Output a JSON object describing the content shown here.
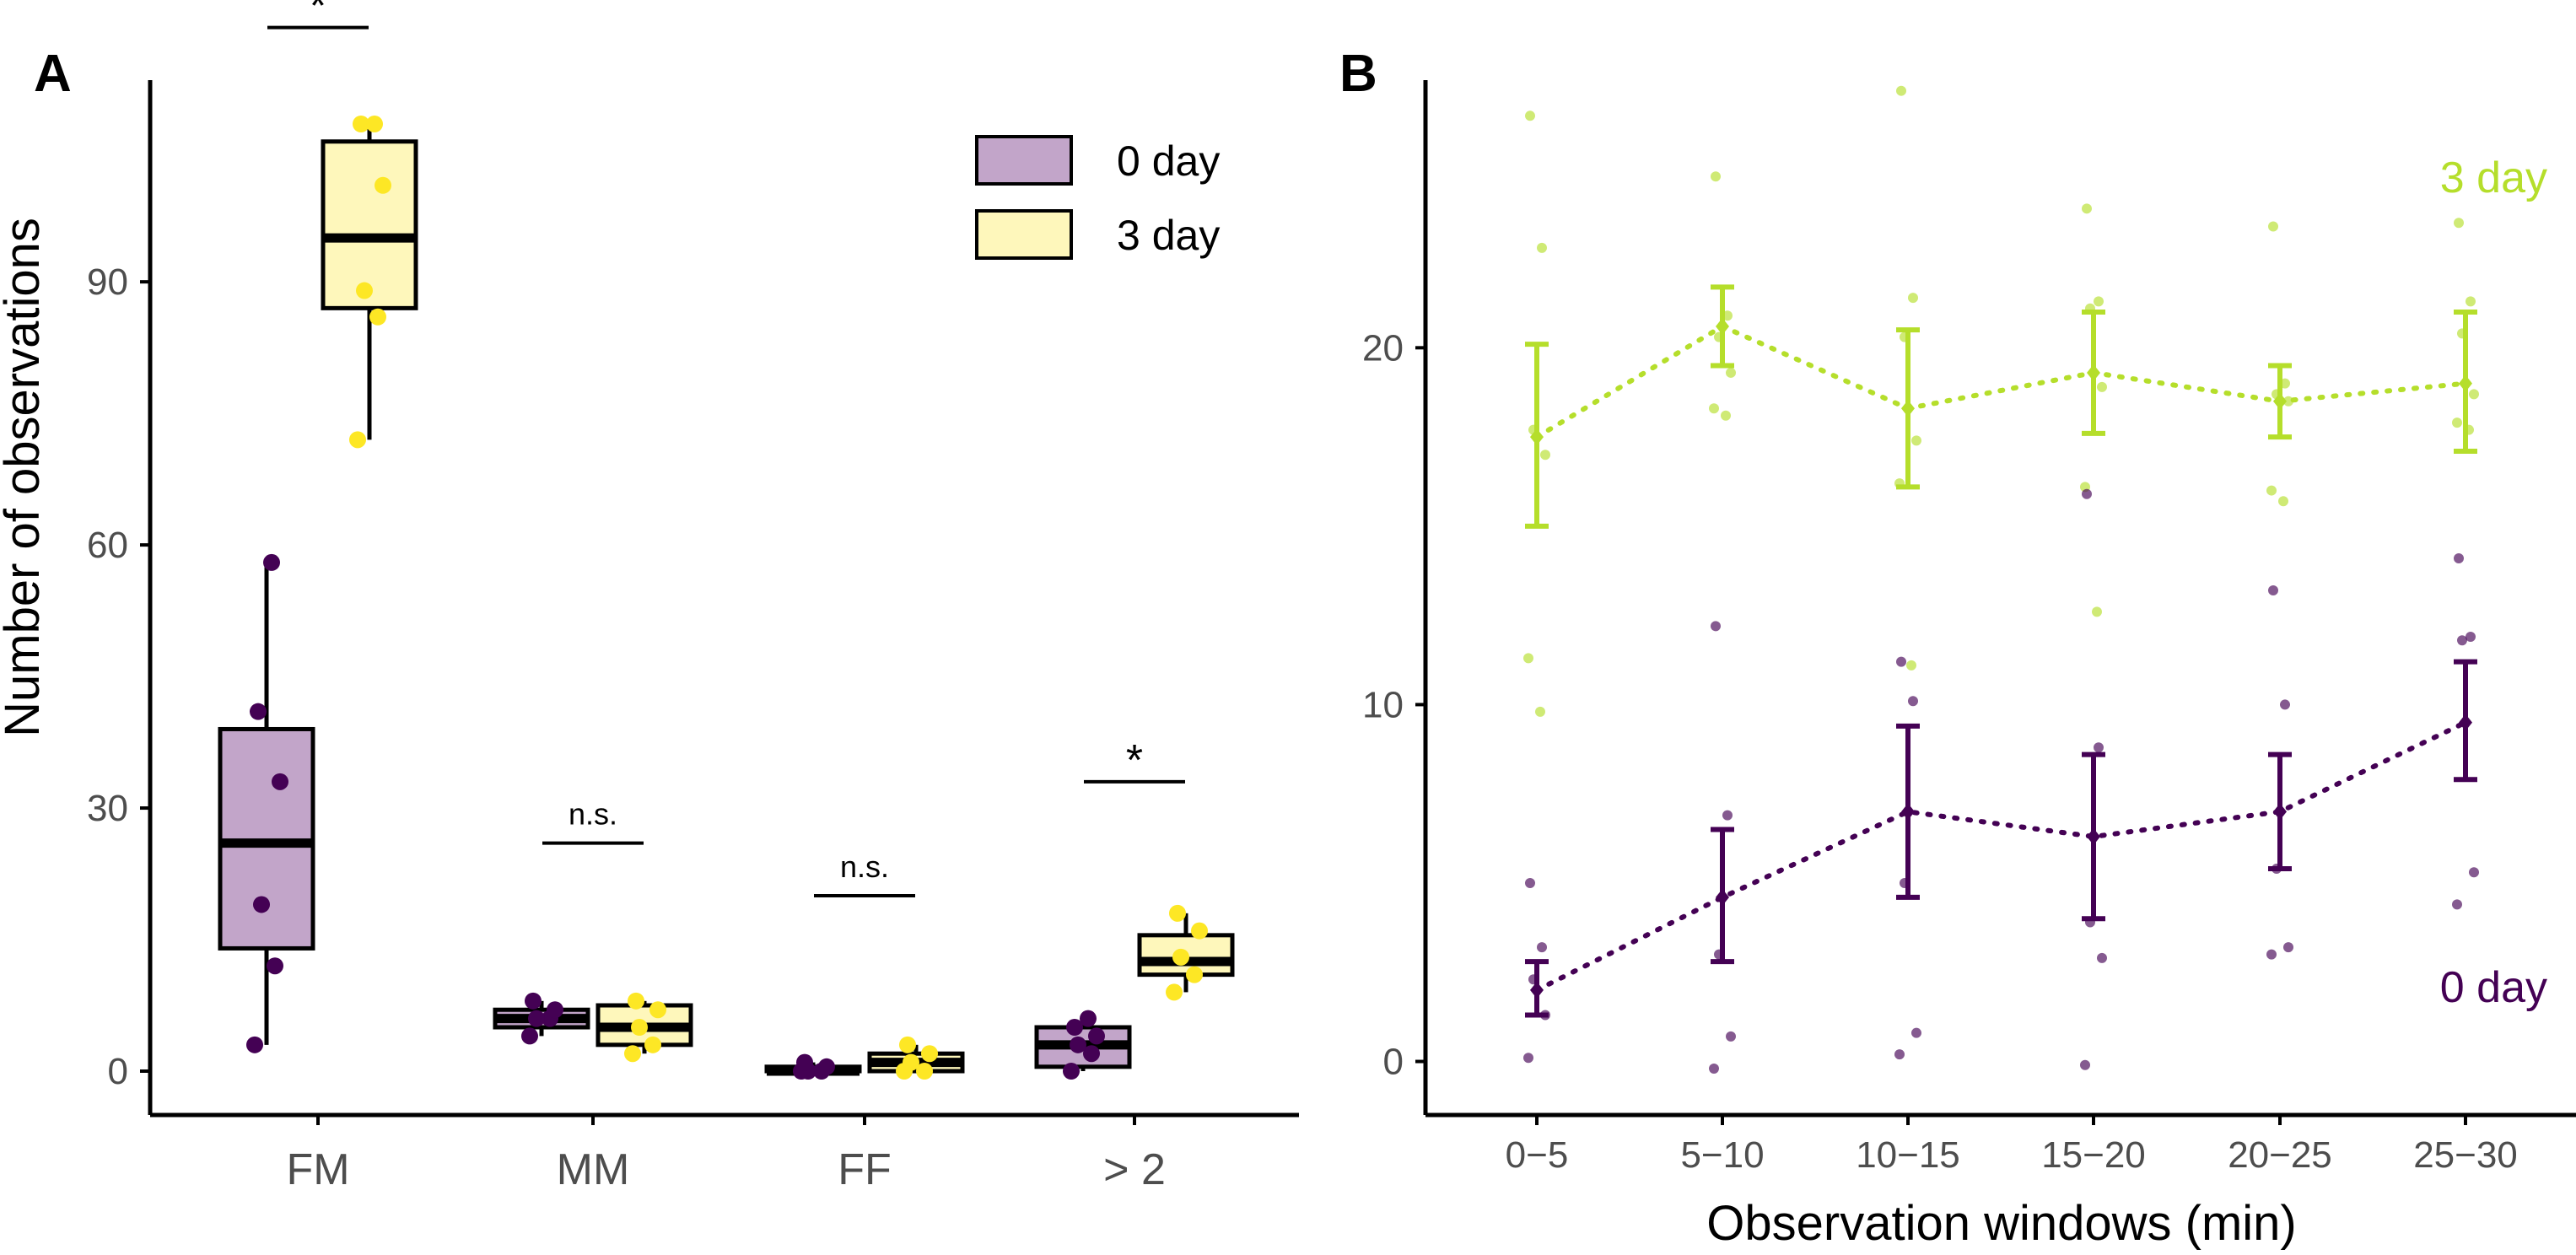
{
  "colors": {
    "day0_point": "#440154",
    "day0_fill": "#c2a5c9",
    "day3_point": "#fde725",
    "day3_fill": "#fef7bb",
    "b_day3": "#b5de2b",
    "b_day0": "#440154",
    "axis": "#000000",
    "tick_text": "#4d4d4d"
  },
  "chart_data": [
    {
      "panel": "A",
      "type": "box",
      "ylabel": "Number of observations",
      "xlabel": "",
      "ylim": [
        -5,
        113
      ],
      "yticks": [
        0,
        30,
        60,
        90
      ],
      "grid": false,
      "legend": {
        "position": "top-right",
        "entries": [
          {
            "label": "0 day",
            "color_key": "day0"
          },
          {
            "label": "3 day",
            "color_key": "day3"
          }
        ]
      },
      "categories": [
        "FM",
        "MM",
        "FF",
        "> 2"
      ],
      "series": [
        {
          "name": "0 day",
          "boxes": [
            {
              "min": 3,
              "q1": 14,
              "median": 26,
              "q3": 39,
              "max": 58,
              "points": [
                3,
                12,
                19,
                33,
                41,
                58
              ]
            },
            {
              "min": 4,
              "q1": 5,
              "median": 6,
              "q3": 7,
              "max": 8,
              "points": [
                4,
                6,
                6,
                7,
                8
              ]
            },
            {
              "min": 0,
              "q1": 0,
              "median": 0,
              "q3": 0.5,
              "max": 1,
              "points": [
                0,
                0,
                0,
                0.5,
                1
              ]
            },
            {
              "min": 0,
              "q1": 0.5,
              "median": 3,
              "q3": 5,
              "max": 6,
              "points": [
                0,
                2,
                3,
                4,
                5,
                6
              ]
            }
          ]
        },
        {
          "name": "3 day",
          "boxes": [
            {
              "min": 72,
              "q1": 87,
              "median": 95,
              "q3": 106,
              "max": 108,
              "points": [
                72,
                86,
                89,
                101,
                108,
                108
              ]
            },
            {
              "min": 2,
              "q1": 3,
              "median": 5,
              "q3": 7.5,
              "max": 8,
              "points": [
                2,
                3,
                5,
                7,
                8
              ]
            },
            {
              "min": 0,
              "q1": 0,
              "median": 1,
              "q3": 2,
              "max": 3,
              "points": [
                0,
                0,
                1,
                2,
                3
              ]
            },
            {
              "min": 9,
              "q1": 11,
              "median": 12.5,
              "q3": 15.5,
              "max": 18,
              "points": [
                9,
                11,
                13,
                16,
                18
              ]
            }
          ]
        }
      ],
      "annotations": [
        {
          "category": "FM",
          "text": "*",
          "y": 119
        },
        {
          "category": "MM",
          "text": "n.s.",
          "y": 26
        },
        {
          "category": "FF",
          "text": "n.s.",
          "y": 20
        },
        {
          "category": "> 2",
          "text": "*",
          "y": 33
        }
      ]
    },
    {
      "panel": "B",
      "type": "line",
      "xlabel": "Observation windows (min)",
      "ylabel": "",
      "ylim": [
        -1.5,
        27.5
      ],
      "yticks": [
        0,
        10,
        20
      ],
      "grid": false,
      "categories": [
        "0−5",
        "5−10",
        "10−15",
        "15−20",
        "20−25",
        "25−30"
      ],
      "series": [
        {
          "name": "3 day",
          "color_key": "b_day3",
          "mean": [
            17.5,
            20.6,
            18.3,
            19.3,
            18.5,
            19.0
          ],
          "error_low": [
            15.0,
            19.5,
            16.1,
            17.6,
            17.5,
            17.1
          ],
          "error_high": [
            20.1,
            21.7,
            20.5,
            21.0,
            19.5,
            21.0
          ],
          "points": [
            [
              26.5,
              22.8,
              17.7,
              17.0,
              11.3,
              9.8
            ],
            [
              24.8,
              20.9,
              20.3,
              19.3,
              18.3,
              18.1
            ],
            [
              27.2,
              21.4,
              20.3,
              17.4,
              16.2,
              11.1
            ],
            [
              23.9,
              21.3,
              21.1,
              18.9,
              16.1,
              12.6
            ],
            [
              23.4,
              19.0,
              18.7,
              18.5,
              16.0,
              15.7
            ],
            [
              23.5,
              21.3,
              20.4,
              18.7,
              17.9,
              17.7
            ]
          ]
        },
        {
          "name": "0 day",
          "color_key": "b_day0",
          "mean": [
            2.0,
            4.6,
            7.0,
            6.3,
            7.0,
            9.5
          ],
          "error_low": [
            1.3,
            2.8,
            4.6,
            4.0,
            5.4,
            7.9
          ],
          "error_high": [
            2.8,
            6.5,
            9.4,
            8.6,
            8.6,
            11.2
          ],
          "points": [
            [
              5.0,
              3.2,
              2.3,
              1.3,
              0.1
            ],
            [
              12.2,
              6.9,
              3.0,
              0.7,
              -0.2
            ],
            [
              11.2,
              10.1,
              5.0,
              0.8,
              0.2
            ],
            [
              15.9,
              8.8,
              3.9,
              2.9,
              -0.1
            ],
            [
              13.2,
              10.0,
              5.4,
              3.2,
              3.0
            ],
            [
              14.1,
              11.9,
              11.8,
              5.3,
              4.4
            ]
          ]
        }
      ],
      "series_labels": [
        {
          "text": "3 day",
          "color_key": "b_day3",
          "position": "top-right"
        },
        {
          "text": "0 day",
          "color_key": "b_day0",
          "position": "bottom-right"
        }
      ]
    }
  ],
  "panels": {
    "a_letter": "A",
    "b_letter": "B"
  }
}
